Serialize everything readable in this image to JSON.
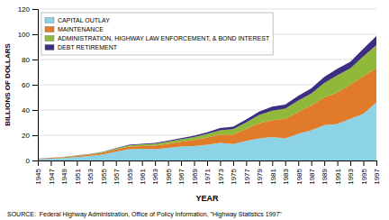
{
  "chart_data": {
    "type": "area",
    "stacked": true,
    "xlabel": "YEAR",
    "ylabel": "BILLIONS OF DOLLARS",
    "x": [
      1945,
      1947,
      1949,
      1951,
      1953,
      1955,
      1957,
      1959,
      1961,
      1963,
      1965,
      1967,
      1969,
      1971,
      1973,
      1975,
      1977,
      1979,
      1981,
      1983,
      1985,
      1987,
      1989,
      1991,
      1993,
      1995,
      1997
    ],
    "xlim": [
      1945,
      1997
    ],
    "xticks": [
      1945,
      1947,
      1949,
      1951,
      1953,
      1955,
      1957,
      1959,
      1961,
      1963,
      1965,
      1967,
      1969,
      1971,
      1973,
      1975,
      1977,
      1979,
      1981,
      1983,
      1985,
      1987,
      1989,
      1991,
      1993,
      1995,
      1997
    ],
    "ylim": [
      0,
      120
    ],
    "yticks": [
      0,
      20,
      40,
      60,
      80,
      100,
      120
    ],
    "grid": "y",
    "legend": "upper left",
    "series": [
      {
        "name": "CAPITAL OUTLAY",
        "color": "#8dd3e8",
        "values": [
          0.9,
          1.4,
          2.0,
          2.7,
          3.5,
          4.8,
          7.0,
          9.0,
          9.2,
          9.0,
          10.0,
          11.0,
          11.5,
          12.5,
          14.0,
          13.0,
          15.5,
          17.5,
          18.5,
          17.5,
          21.0,
          24.0,
          28.0,
          29.0,
          33.0,
          37.0,
          46.0
        ]
      },
      {
        "name": "MAINTENANCE",
        "color": "#e07b2a",
        "values": [
          0.3,
          0.5,
          0.6,
          0.9,
          1.1,
          1.4,
          1.7,
          2.0,
          2.3,
          2.8,
          3.3,
          3.8,
          4.7,
          5.7,
          6.5,
          7.5,
          9.5,
          12.0,
          13.5,
          15.5,
          17.5,
          19.5,
          22.0,
          25.0,
          27.0,
          30.0,
          27.0
        ]
      },
      {
        "name": "ADMINISTRATION, HIGHWAY LAW ENFORCEMENT, & BOND INTEREST",
        "color": "#90b83a",
        "values": [
          0.1,
          0.15,
          0.25,
          0.35,
          0.45,
          0.55,
          0.75,
          1.0,
          1.1,
          1.4,
          1.7,
          1.9,
          2.3,
          2.8,
          3.5,
          4.3,
          5.2,
          6.5,
          7.5,
          8.0,
          9.0,
          9.5,
          11.5,
          13.5,
          13.0,
          15.5,
          18.5
        ]
      },
      {
        "name": "DEBT RETIREMENT",
        "color": "#3c2e80",
        "values": [
          0.05,
          0.07,
          0.09,
          0.12,
          0.18,
          0.25,
          0.35,
          0.45,
          0.55,
          0.65,
          0.75,
          0.9,
          1.1,
          1.4,
          1.7,
          1.9,
          2.3,
          2.8,
          3.2,
          3.3,
          3.8,
          4.2,
          4.7,
          5.2,
          5.2,
          6.0,
          7.0
        ]
      }
    ],
    "annotations": [
      "SOURCE:  Federal Highway Administration, Office of Policy Information, \"Highway Statistics 1997\""
    ]
  }
}
